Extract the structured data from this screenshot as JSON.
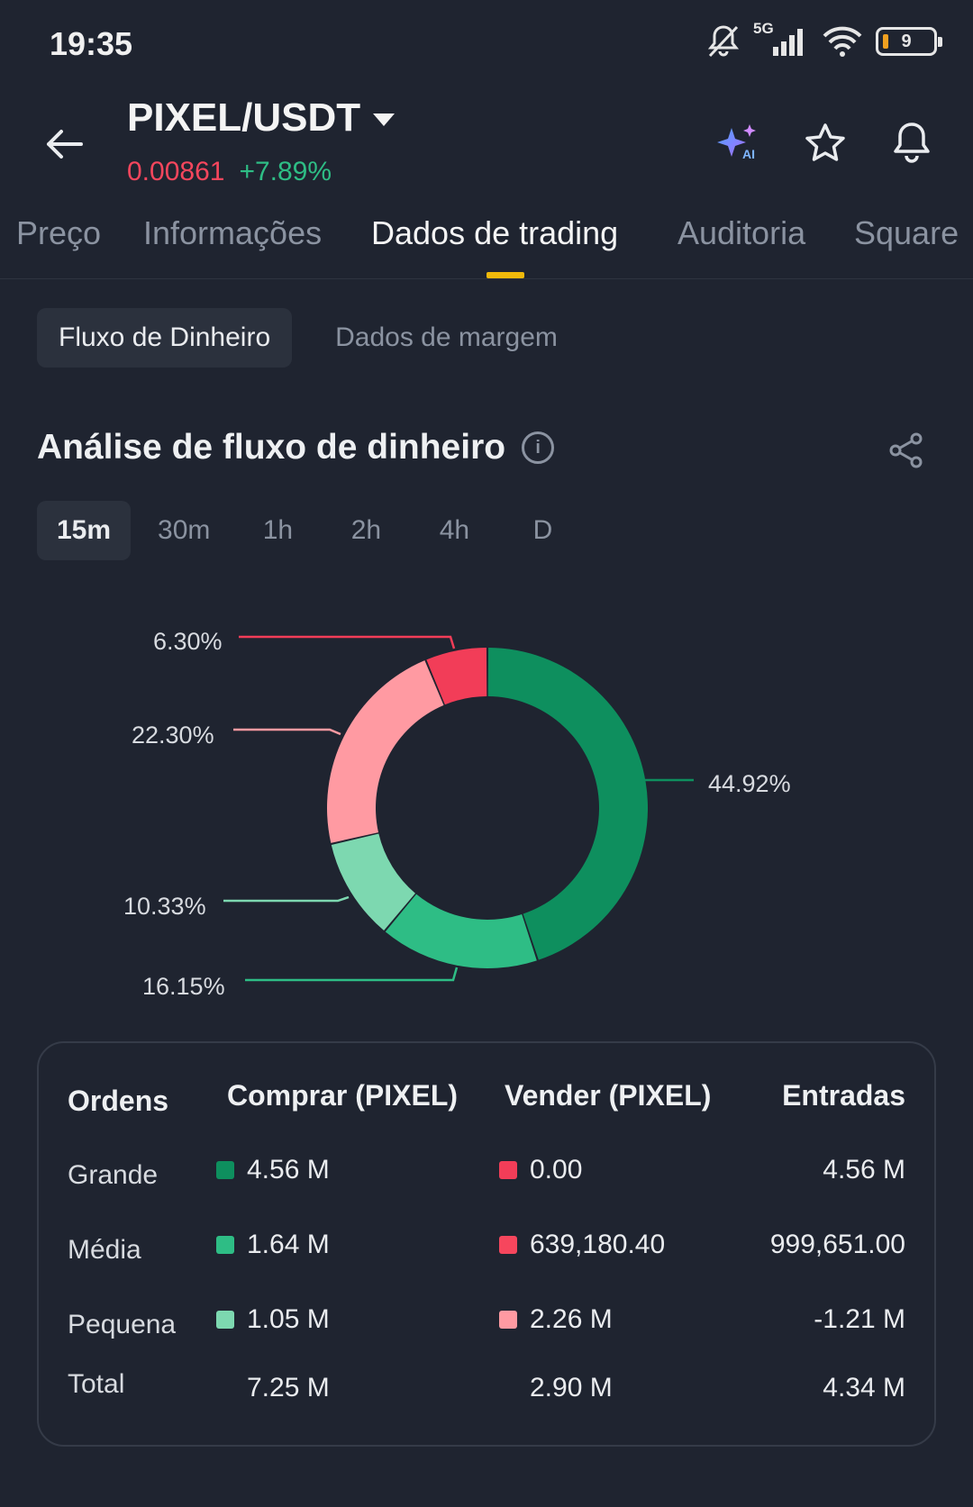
{
  "status_bar": {
    "time": "19:35",
    "network": "5G",
    "battery": "9"
  },
  "header": {
    "pair": "PIXEL/USDT",
    "price": "0.00861",
    "change": "+7.89%",
    "icons": [
      "back-arrow-icon",
      "ai-sparkle-icon",
      "star-icon",
      "bell-icon"
    ]
  },
  "tabs": [
    {
      "label": "Preço"
    },
    {
      "label": "Informações"
    },
    {
      "label": "Dados de trading"
    },
    {
      "label": "Auditoria"
    },
    {
      "label": "Square"
    }
  ],
  "active_tab": "Dados de trading",
  "subtabs": [
    {
      "label": "Fluxo de Dinheiro"
    },
    {
      "label": "Dados de margem"
    }
  ],
  "section": {
    "title": "Análise de fluxo de dinheiro"
  },
  "timeframes": [
    "15m",
    "30m",
    "1h",
    "2h",
    "4h",
    "D"
  ],
  "active_timeframe": "15m",
  "colors": {
    "buy_large": "#0e8f5e",
    "buy_medium": "#2ebd85",
    "buy_small": "#7dd8b0",
    "sell_large": "#f23d58",
    "sell_medium": "#f6465d",
    "sell_small": "#ff9aa2",
    "accent": "#f0b90b"
  },
  "chart_data": {
    "type": "pie",
    "donut": true,
    "slices": [
      {
        "label": "44.92%",
        "value": 44.92,
        "color": "#0e8f5e"
      },
      {
        "label": "16.15%",
        "value": 16.15,
        "color": "#2ebd85"
      },
      {
        "label": "10.33%",
        "value": 10.33,
        "color": "#7dd8b0"
      },
      {
        "label": "22.30%",
        "value": 22.3,
        "color": "#ff9aa2"
      },
      {
        "label": "6.30%",
        "value": 6.3,
        "color": "#f23d58"
      }
    ]
  },
  "table": {
    "headers": {
      "orders": "Ordens",
      "buy": "Comprar (PIXEL)",
      "sell": "Vender (PIXEL)",
      "inflow": "Entradas"
    },
    "rows": [
      {
        "label": "Grande",
        "buy": "4.56 M",
        "sell": "0.00",
        "inflow": "4.56 M"
      },
      {
        "label": "Média",
        "buy": "1.64 M",
        "sell": "639,180.40",
        "inflow": "999,651.00"
      },
      {
        "label": "Pequena",
        "buy": "1.05 M",
        "sell": "2.26 M",
        "inflow": "-1.21 M"
      },
      {
        "label": "Total",
        "buy": "7.25 M",
        "sell": "2.90 M",
        "inflow": "4.34 M"
      }
    ]
  }
}
